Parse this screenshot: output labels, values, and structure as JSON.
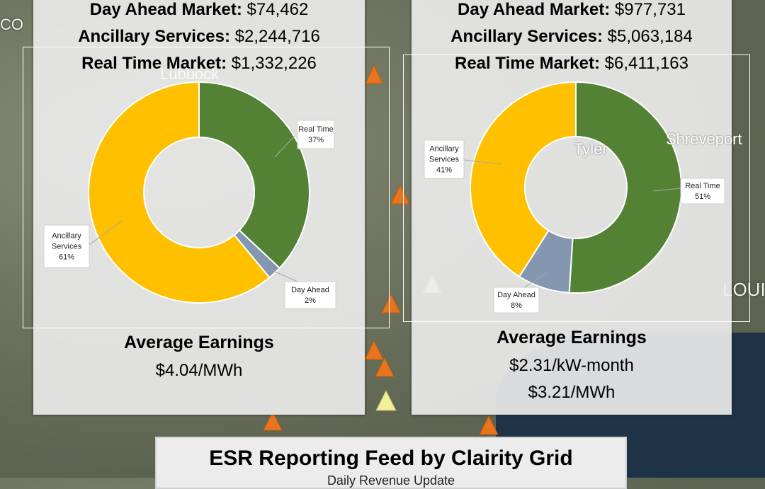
{
  "panels": [
    {
      "day_ahead_label": "Day Ahead Market:",
      "day_ahead_value": "$74,462",
      "ancillary_label": "Ancillary Services:",
      "ancillary_value": "$2,244,716",
      "real_time_label": "Real Time Market:",
      "real_time_value": "$1,332,226",
      "avg_title": "Average Earnings",
      "avg_lines": [
        "$4.04/MWh"
      ]
    },
    {
      "day_ahead_label": "Day Ahead Market:",
      "day_ahead_value": "$977,731",
      "ancillary_label": "Ancillary Services:",
      "ancillary_value": "$5,063,184",
      "real_time_label": "Real Time Market:",
      "real_time_value": "$6,411,163",
      "avg_title": "Average Earnings",
      "avg_lines": [
        "$2.31/kW-month",
        "$3.21/MWh"
      ]
    }
  ],
  "map_labels": {
    "lubbock": "Lubbock",
    "tyler": "Tyler",
    "shreveport": "Shreveport",
    "loui": "LOUI",
    "co": "CO"
  },
  "footer": {
    "title": "ESR Reporting Feed by Clairity Grid",
    "subtitle": "Daily Revenue Update"
  },
  "colors": {
    "real_time": "#548235",
    "ancillary": "#ffc000",
    "day_ahead": "#8497b0"
  },
  "chart_data": [
    {
      "type": "pie",
      "donut": true,
      "categories": [
        "Real Time",
        "Day Ahead",
        "Ancillary Services"
      ],
      "values": [
        37,
        2,
        61
      ],
      "labels": [
        [
          "Real Time",
          "37%"
        ],
        [
          "Day Ahead",
          "2%"
        ],
        [
          "Ancillary",
          "Services",
          "61%"
        ]
      ]
    },
    {
      "type": "pie",
      "donut": true,
      "categories": [
        "Real Time",
        "Day Ahead",
        "Ancillary Services"
      ],
      "values": [
        51,
        8,
        41
      ],
      "labels": [
        [
          "Real Time",
          "51%"
        ],
        [
          "Day Ahead",
          "8%"
        ],
        [
          "Ancillary",
          "Services",
          "41%"
        ]
      ]
    }
  ]
}
